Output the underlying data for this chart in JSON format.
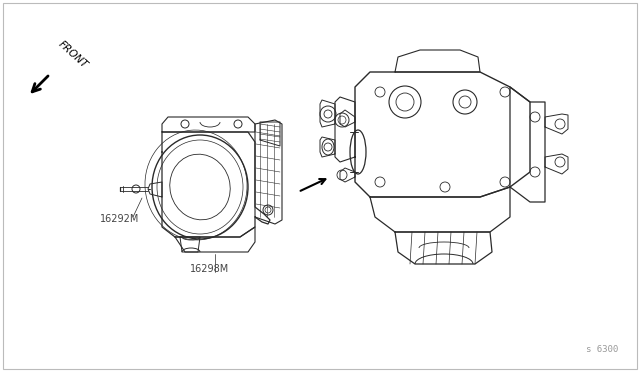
{
  "bg_color": "#ffffff",
  "border_color": "#bbbbbb",
  "line_color": "#2a2a2a",
  "label_16292M": "16292M",
  "label_16298M": "16298M",
  "label_front": "FRONT",
  "label_part_num": "s 6300",
  "text_color": "#444444",
  "figsize": [
    6.4,
    3.72
  ],
  "dpi": 100
}
